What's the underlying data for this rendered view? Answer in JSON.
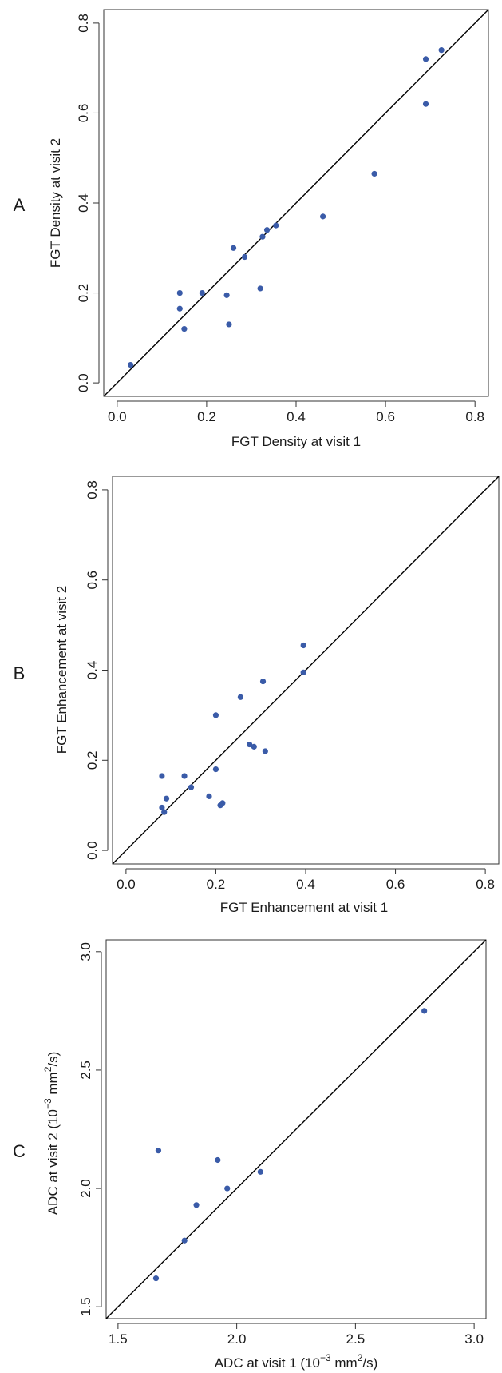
{
  "chart_data": [
    {
      "type": "scatter",
      "panel_label": "A",
      "xlabel": "FGT Density at visit 1",
      "ylabel": "FGT Density at visit 2",
      "xlim": [
        -0.03,
        0.83
      ],
      "ylim": [
        -0.03,
        0.83
      ],
      "xticks": [
        0.0,
        0.2,
        0.4,
        0.6,
        0.8
      ],
      "xtick_labels": [
        "0.0",
        "0.2",
        "0.4",
        "0.6",
        "0.8"
      ],
      "yticks": [
        0.0,
        0.2,
        0.4,
        0.6,
        0.8
      ],
      "ytick_labels": [
        "0.0",
        "0.2",
        "0.4",
        "0.6",
        "0.8"
      ],
      "identity_line": true,
      "grid": false,
      "point_color": "#3a5ba8",
      "points": [
        {
          "x": 0.03,
          "y": 0.04
        },
        {
          "x": 0.14,
          "y": 0.2
        },
        {
          "x": 0.14,
          "y": 0.165
        },
        {
          "x": 0.15,
          "y": 0.12
        },
        {
          "x": 0.19,
          "y": 0.2
        },
        {
          "x": 0.245,
          "y": 0.195
        },
        {
          "x": 0.25,
          "y": 0.13
        },
        {
          "x": 0.26,
          "y": 0.3
        },
        {
          "x": 0.285,
          "y": 0.28
        },
        {
          "x": 0.32,
          "y": 0.21
        },
        {
          "x": 0.325,
          "y": 0.325
        },
        {
          "x": 0.335,
          "y": 0.34
        },
        {
          "x": 0.355,
          "y": 0.35
        },
        {
          "x": 0.46,
          "y": 0.37
        },
        {
          "x": 0.575,
          "y": 0.465
        },
        {
          "x": 0.69,
          "y": 0.72
        },
        {
          "x": 0.69,
          "y": 0.62
        },
        {
          "x": 0.725,
          "y": 0.74
        }
      ]
    },
    {
      "type": "scatter",
      "panel_label": "B",
      "xlabel": "FGT Enhancement at visit 1",
      "ylabel": "FGT Enhancement at visit 2",
      "xlim": [
        -0.03,
        0.83
      ],
      "ylim": [
        -0.03,
        0.83
      ],
      "xticks": [
        0.0,
        0.2,
        0.4,
        0.6,
        0.8
      ],
      "xtick_labels": [
        "0.0",
        "0.2",
        "0.4",
        "0.6",
        "0.8"
      ],
      "yticks": [
        0.0,
        0.2,
        0.4,
        0.6,
        0.8
      ],
      "ytick_labels": [
        "0.0",
        "0.2",
        "0.4",
        "0.6",
        "0.8"
      ],
      "identity_line": true,
      "grid": false,
      "point_color": "#3a5ba8",
      "points": [
        {
          "x": 0.08,
          "y": 0.165
        },
        {
          "x": 0.08,
          "y": 0.095
        },
        {
          "x": 0.085,
          "y": 0.085
        },
        {
          "x": 0.09,
          "y": 0.115
        },
        {
          "x": 0.13,
          "y": 0.165
        },
        {
          "x": 0.145,
          "y": 0.14
        },
        {
          "x": 0.185,
          "y": 0.12
        },
        {
          "x": 0.2,
          "y": 0.18
        },
        {
          "x": 0.2,
          "y": 0.3
        },
        {
          "x": 0.21,
          "y": 0.1
        },
        {
          "x": 0.215,
          "y": 0.105
        },
        {
          "x": 0.255,
          "y": 0.34
        },
        {
          "x": 0.275,
          "y": 0.235
        },
        {
          "x": 0.285,
          "y": 0.23
        },
        {
          "x": 0.305,
          "y": 0.375
        },
        {
          "x": 0.31,
          "y": 0.22
        },
        {
          "x": 0.395,
          "y": 0.455
        },
        {
          "x": 0.395,
          "y": 0.395
        }
      ]
    },
    {
      "type": "scatter",
      "panel_label": "C",
      "xlabel_main": "ADC at visit 1 (10",
      "xlabel_exp": "−3",
      "xlabel_rest": " mm",
      "xlabel_exp2": "2",
      "xlabel_end": "/s)",
      "ylabel_main": "ADC at visit 2 (10",
      "ylabel_exp": "−3",
      "ylabel_rest": " mm",
      "ylabel_exp2": "2",
      "ylabel_end": "/s)",
      "xlim": [
        1.45,
        3.05
      ],
      "ylim": [
        1.45,
        3.05
      ],
      "xticks": [
        1.5,
        2.0,
        2.5,
        3.0
      ],
      "xtick_labels": [
        "1.5",
        "2.0",
        "2.5",
        "3.0"
      ],
      "yticks": [
        1.5,
        2.0,
        2.5,
        3.0
      ],
      "ytick_labels": [
        "1.5",
        "2.0",
        "2.5",
        "3.0"
      ],
      "identity_line": true,
      "grid": false,
      "point_color": "#3a5ba8",
      "points": [
        {
          "x": 1.66,
          "y": 1.62
        },
        {
          "x": 1.67,
          "y": 2.16
        },
        {
          "x": 1.78,
          "y": 1.78
        },
        {
          "x": 1.83,
          "y": 1.93
        },
        {
          "x": 1.92,
          "y": 2.12
        },
        {
          "x": 1.96,
          "y": 2.0
        },
        {
          "x": 2.1,
          "y": 2.07
        },
        {
          "x": 2.79,
          "y": 2.75
        }
      ]
    }
  ]
}
